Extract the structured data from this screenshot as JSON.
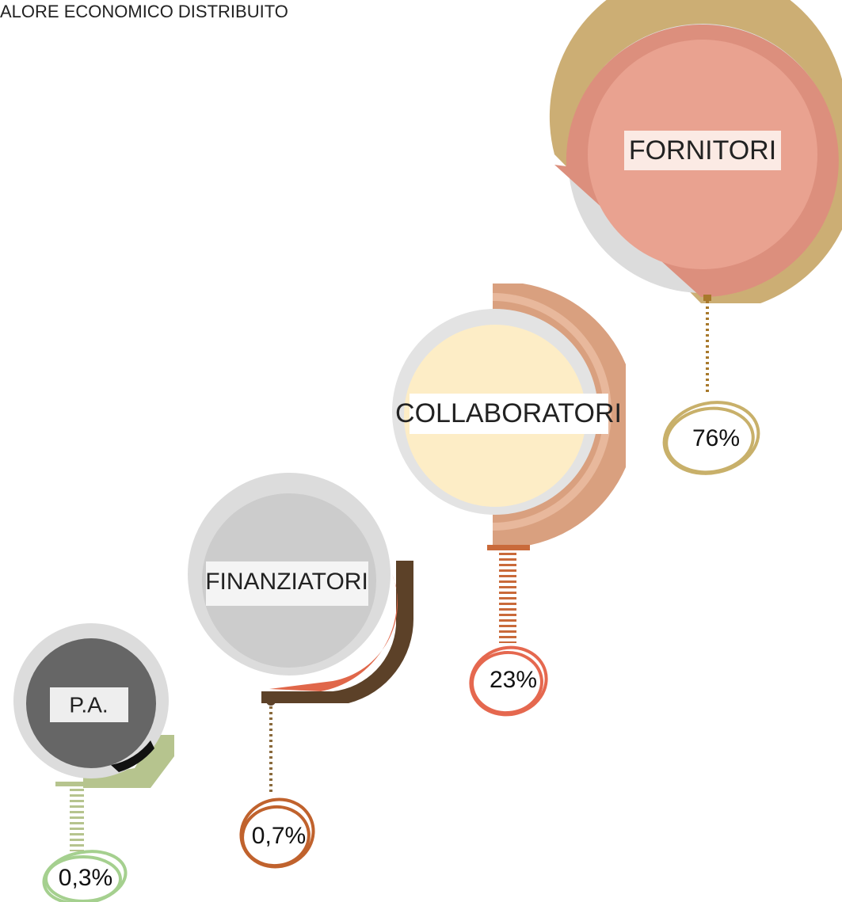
{
  "title": "ALORE ECONOMICO DISTRIBUITO",
  "items": [
    {
      "label": "FORNITORI",
      "value": "76%"
    },
    {
      "label": "COLLABORATORI",
      "value": "23%"
    },
    {
      "label": "FINANZIATORI",
      "value": "0,7%"
    },
    {
      "label": "P.A.",
      "value": "0,3%"
    }
  ]
}
